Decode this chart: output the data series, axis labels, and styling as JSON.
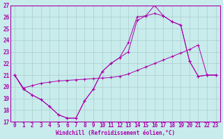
{
  "xlabel": "Windchill (Refroidissement éolien,°C)",
  "bg_color": "#c8ecec",
  "line_color": "#aa00aa",
  "grid_color": "#aacccc",
  "ylim": [
    17,
    27
  ],
  "xlim_min": -0.5,
  "xlim_max": 23.5,
  "yticks": [
    17,
    18,
    19,
    20,
    21,
    22,
    23,
    24,
    25,
    26,
    27
  ],
  "xticks": [
    0,
    1,
    2,
    3,
    4,
    5,
    6,
    7,
    8,
    9,
    10,
    11,
    12,
    13,
    14,
    15,
    16,
    17,
    18,
    19,
    20,
    21,
    22,
    23
  ],
  "line1_x": [
    0,
    1,
    2,
    3,
    4,
    5,
    6,
    7,
    8,
    9,
    10,
    11,
    12,
    13,
    14,
    15,
    16,
    17,
    18,
    19,
    20,
    21,
    22,
    23
  ],
  "line1_y": [
    21.0,
    19.8,
    19.3,
    18.9,
    18.3,
    17.6,
    17.3,
    17.3,
    18.8,
    19.8,
    21.3,
    22.0,
    22.5,
    23.0,
    25.7,
    26.1,
    26.3,
    26.1,
    25.6,
    25.3,
    22.2,
    20.9,
    21.0,
    21.0
  ],
  "line2_x": [
    0,
    1,
    2,
    3,
    4,
    5,
    6,
    7,
    8,
    9,
    10,
    11,
    12,
    13,
    14,
    15,
    16,
    17,
    18,
    19,
    20,
    21,
    22,
    23
  ],
  "line2_y": [
    21.0,
    19.9,
    20.1,
    20.3,
    20.4,
    20.5,
    20.55,
    20.6,
    20.65,
    20.7,
    20.75,
    20.8,
    20.9,
    21.1,
    21.4,
    21.7,
    22.0,
    22.3,
    22.6,
    22.9,
    23.2,
    23.6,
    21.0,
    21.0
  ],
  "line3_x": [
    0,
    1,
    2,
    3,
    4,
    5,
    6,
    7,
    8,
    9,
    10,
    11,
    12,
    13,
    14,
    15,
    16,
    17,
    18,
    19,
    20,
    21,
    22,
    23
  ],
  "line3_y": [
    21.0,
    19.8,
    19.3,
    18.9,
    18.3,
    17.6,
    17.3,
    17.3,
    18.8,
    19.8,
    21.3,
    22.0,
    22.5,
    23.8,
    26.0,
    26.1,
    27.0,
    26.1,
    25.6,
    25.3,
    22.2,
    20.9,
    21.0,
    21.0
  ]
}
